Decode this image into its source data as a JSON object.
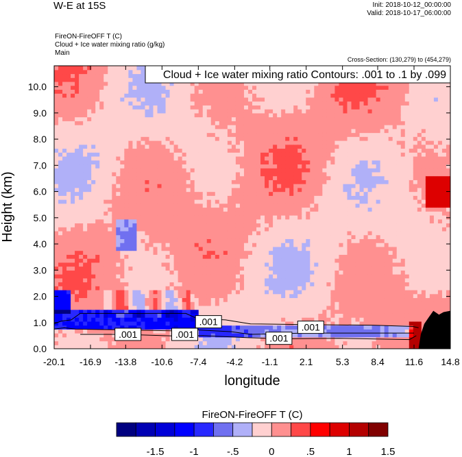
{
  "header": {
    "title": "W-E at 15S",
    "init": "Init: 2018-10-12_00:00:00",
    "valid": "Valid: 2018-10-17_06:00:00",
    "field_line_1": "FireON-FireOFF T   (C)",
    "field_line_2": "Cloud + Ice water mixing ratio   (g/kg)",
    "field_line_3": "Main",
    "cross_section": "Cross-Section: (130,279) to (454,279)"
  },
  "colors": {
    "scale": [
      "#000080",
      "#0000b4",
      "#0000d8",
      "#0000ff",
      "#2828ff",
      "#7070f0",
      "#b0b0f8",
      "#ffd0d0",
      "#ff9090",
      "#ff4848",
      "#ff0000",
      "#dd0000",
      "#b40000",
      "#800000"
    ],
    "background_neg": "#b8bff5",
    "background_pos": "#ffd3d3",
    "terrain": "#000000"
  },
  "chart_data": {
    "type": "heatmap",
    "title": "FireON-FireOFF T  (C)",
    "xlabel": "longitude",
    "ylabel": "Height (km)",
    "xlim": [
      -20.1,
      14.8
    ],
    "ylim": [
      0.0,
      10.8
    ],
    "x_ticks": [
      "-20.1",
      "-16.9",
      "-13.8",
      "-10.6",
      "-7.4",
      "-4.2",
      "-1.1",
      "2.1",
      "5.3",
      "8.4",
      "11.6",
      "14.8"
    ],
    "x_tick_values": [
      -20.1,
      -16.9,
      -13.8,
      -10.6,
      -7.4,
      -4.2,
      -1.1,
      2.1,
      5.3,
      8.4,
      11.6,
      14.8
    ],
    "y_ticks": [
      "0.0",
      "1.0",
      "2.0",
      "3.0",
      "4.0",
      "5.0",
      "6.0",
      "7.0",
      "8.0",
      "9.0",
      "10.0"
    ],
    "y_tick_values": [
      0,
      1,
      2,
      3,
      4,
      5,
      6,
      7,
      8,
      9,
      10
    ],
    "contour_info": "Cloud + Ice water mixing ratio Contours: .001 to .1 by .099",
    "contour_labels": [
      {
        "text": ".001",
        "x": -13.6,
        "y": 0.55
      },
      {
        "text": ".001",
        "x": -8.6,
        "y": 0.55
      },
      {
        "text": ".001",
        "x": -6.5,
        "y": 1.03
      },
      {
        "text": ".001",
        "x": -0.3,
        "y": 0.4
      },
      {
        "text": ".001",
        "x": 2.5,
        "y": 0.82
      }
    ],
    "colorbar": {
      "title": "FireON-FireOFF T  (C)",
      "levels": [
        -1.75,
        -1.5,
        -1.25,
        -1.0,
        -0.75,
        -0.5,
        -0.25,
        0.0,
        0.25,
        0.5,
        0.75,
        1.0,
        1.25,
        1.5,
        1.75
      ],
      "labels": [
        "-1.5",
        "-1",
        "-.5",
        "0",
        ".5",
        "1",
        "1.5"
      ],
      "label_values": [
        -1.5,
        -1.0,
        -0.5,
        0.0,
        0.5,
        1.0,
        1.5
      ]
    },
    "features": {
      "pbl_top_km": 1.0,
      "cloud_band_west_km": [
        0.8,
        1.4
      ],
      "cloud_band_east_km": [
        0.6,
        0.85
      ],
      "terrain_start_lon": 12.0,
      "terrain_max_km": 1.45
    }
  }
}
